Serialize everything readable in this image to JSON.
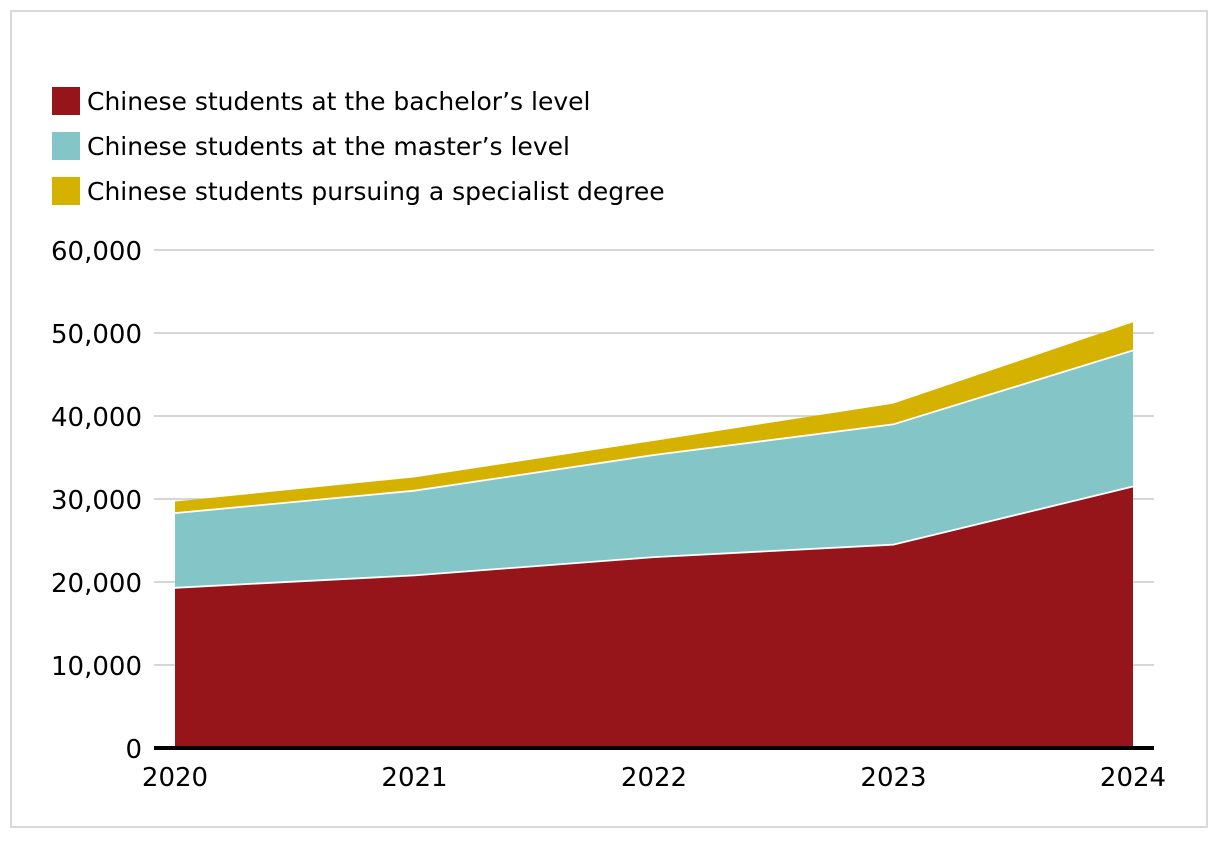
{
  "chart_data": {
    "type": "area",
    "stacked": true,
    "x": [
      "2020",
      "2021",
      "2022",
      "2023",
      "2024"
    ],
    "series": [
      {
        "name": "Chinese students at the bachelor’s level",
        "values": [
          19300,
          20800,
          23000,
          24500,
          31500
        ],
        "color": "#96151b"
      },
      {
        "name": "Chinese students at the master’s level",
        "values": [
          9000,
          10200,
          12300,
          14500,
          16400
        ],
        "color": "#84c6c7"
      },
      {
        "name": "Chinese students pursuing a specialist degree",
        "values": [
          1400,
          1600,
          1700,
          2500,
          3400
        ],
        "color": "#d6b200"
      }
    ],
    "ylim": [
      0,
      60000
    ],
    "yticks": [
      "0",
      "10,000",
      "20,000",
      "30,000",
      "40,000",
      "50,000",
      "60,000"
    ],
    "ytick_values": [
      0,
      10000,
      20000,
      30000,
      40000,
      50000,
      60000
    ],
    "grid": true,
    "legend_position": "top-left",
    "title": "",
    "xlabel": "",
    "ylabel": ""
  }
}
